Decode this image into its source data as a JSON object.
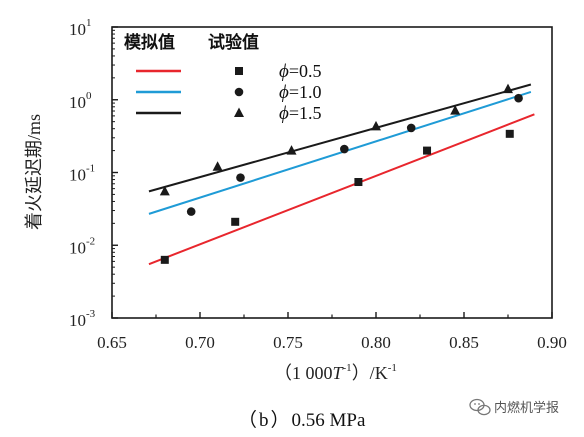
{
  "chart_data": {
    "type": "scatter",
    "xlabel": "（1 000T⁻¹）/K⁻¹",
    "xlabel_prefix": "（1 000",
    "xlabel_T": "T",
    "xlabel_exp": "-1",
    "xlabel_suffix": "）/K",
    "xlabel_suffix_exp": "-1",
    "ylabel": "着火延迟期/ms",
    "y_scale": "log",
    "xlim": [
      0.65,
      0.9
    ],
    "ylim_exp": [
      -3,
      1
    ],
    "x_ticks": [
      "0.65",
      "0.70",
      "0.75",
      "0.80",
      "0.85",
      "0.90"
    ],
    "x_tick_values": [
      0.65,
      0.7,
      0.75,
      0.8,
      0.85,
      0.9
    ],
    "y_ticks": [
      {
        "base": "10",
        "exp": "-3",
        "value": -3
      },
      {
        "base": "10",
        "exp": "-2",
        "value": -2
      },
      {
        "base": "10",
        "exp": "-1",
        "value": -1
      },
      {
        "base": "10",
        "exp": "0",
        "value": 0
      },
      {
        "base": "10",
        "exp": "1",
        "value": 1
      }
    ],
    "legend": {
      "placement": "top-left",
      "sim_header": "模拟值",
      "exp_header": "试验值",
      "entries": [
        {
          "phi_symbol": "ϕ",
          "label": "=0.5",
          "line_color": "#e8262d",
          "marker": "square"
        },
        {
          "phi_symbol": "ϕ",
          "label": "=1.0",
          "line_color": "#1f9bd6",
          "marker": "circle"
        },
        {
          "phi_symbol": "ϕ",
          "label": "=1.5",
          "line_color": "#1a1a1a",
          "marker": "triangle"
        }
      ]
    },
    "series": [
      {
        "name": "ϕ=0.5",
        "color": "#e8262d",
        "marker": "square",
        "experimental": [
          {
            "x": 0.68,
            "y": 0.0063
          },
          {
            "x": 0.72,
            "y": 0.021
          },
          {
            "x": 0.79,
            "y": 0.074
          },
          {
            "x": 0.829,
            "y": 0.2
          },
          {
            "x": 0.876,
            "y": 0.34
          }
        ],
        "simulated": [
          {
            "x": 0.671,
            "y": 0.0055
          },
          {
            "x": 0.89,
            "y": 0.63
          }
        ]
      },
      {
        "name": "ϕ=1.0",
        "color": "#1f9bd6",
        "marker": "circle",
        "experimental": [
          {
            "x": 0.695,
            "y": 0.029
          },
          {
            "x": 0.723,
            "y": 0.085
          },
          {
            "x": 0.782,
            "y": 0.21
          },
          {
            "x": 0.82,
            "y": 0.41
          },
          {
            "x": 0.881,
            "y": 1.05
          }
        ],
        "simulated": [
          {
            "x": 0.671,
            "y": 0.027
          },
          {
            "x": 0.888,
            "y": 1.28
          }
        ]
      },
      {
        "name": "ϕ=1.5",
        "color": "#1a1a1a",
        "marker": "triangle",
        "experimental": [
          {
            "x": 0.68,
            "y": 0.055
          },
          {
            "x": 0.71,
            "y": 0.12
          },
          {
            "x": 0.752,
            "y": 0.2
          },
          {
            "x": 0.8,
            "y": 0.43
          },
          {
            "x": 0.845,
            "y": 0.71
          },
          {
            "x": 0.875,
            "y": 1.4
          }
        ],
        "simulated": [
          {
            "x": 0.671,
            "y": 0.055
          },
          {
            "x": 0.888,
            "y": 1.62
          }
        ]
      }
    ]
  },
  "caption": {
    "open": "（",
    "letter": "b",
    "close": "）",
    "pressure": "0.56 MPa"
  },
  "watermark": {
    "text": "内燃机学报"
  },
  "colors": {
    "axis": "#1a1a1a",
    "red": "#e8262d",
    "blue": "#1f9bd6",
    "black": "#1a1a1a"
  }
}
